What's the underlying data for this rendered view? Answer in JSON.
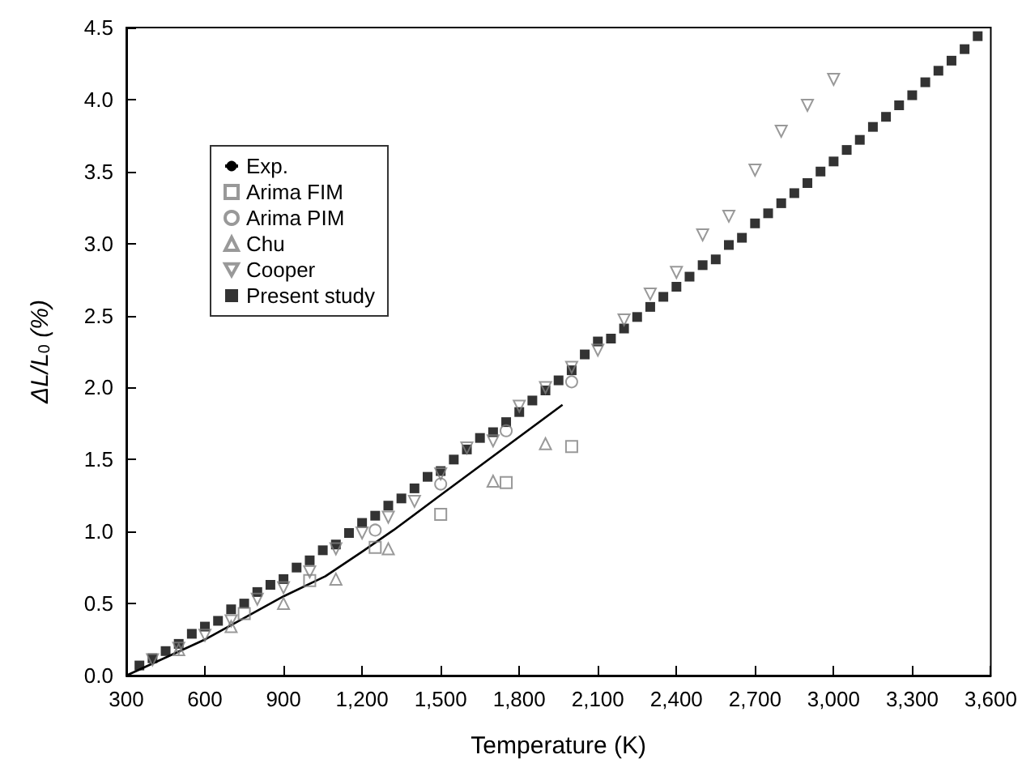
{
  "chart_data": {
    "type": "scatter",
    "xlabel": "Temperature (K)",
    "ylabel": "ΔL/L$_{0}$ (%)",
    "xlim": [
      300,
      3600
    ],
    "xticks": [
      {
        "value": 300,
        "label": "300"
      },
      {
        "value": 600,
        "label": "600"
      },
      {
        "value": 900,
        "label": "900"
      },
      {
        "value": 1200,
        "label": "1,200"
      },
      {
        "value": 1500,
        "label": "1,500"
      },
      {
        "value": 1800,
        "label": "1,800"
      },
      {
        "value": 2100,
        "label": "2,100"
      },
      {
        "value": 2400,
        "label": "2,400"
      },
      {
        "value": 2700,
        "label": "2,700"
      },
      {
        "value": 3000,
        "label": "3,000"
      },
      {
        "value": 3300,
        "label": "3,300"
      },
      {
        "value": 3600,
        "label": "3,600"
      }
    ],
    "ylim": [
      0,
      4.5
    ],
    "yticks": [
      {
        "value": 0,
        "label": "0.0"
      },
      {
        "value": 0.5,
        "label": "0.5"
      },
      {
        "value": 1,
        "label": "1.0"
      },
      {
        "value": 1.5,
        "label": "1.5"
      },
      {
        "value": 2,
        "label": "2.0"
      },
      {
        "value": 2.5,
        "label": "2.5"
      },
      {
        "value": 3,
        "label": "3.0"
      },
      {
        "value": 3.5,
        "label": "3.5"
      },
      {
        "value": 4,
        "label": "4.0"
      },
      {
        "value": 4.5,
        "label": "4.5"
      }
    ],
    "legend": "top left",
    "grid": false,
    "series": [
      {
        "name": "Exp.",
        "type": "line",
        "marker": "none",
        "line_style": "solid",
        "color": "#000000",
        "x": [
          300,
          600,
          900,
          1060,
          1200,
          1320,
          1490,
          1965
        ],
        "values": [
          0.0,
          0.25,
          0.55,
          0.69,
          0.86,
          1.01,
          1.24,
          1.88
        ]
      },
      {
        "name": "Arima FIM",
        "marker": "square",
        "color": "#808080",
        "x": [
          750,
          1000,
          1250,
          1500,
          1750,
          2000
        ],
        "values": [
          0.43,
          0.66,
          0.89,
          1.12,
          1.34,
          1.59
        ]
      },
      {
        "name": "Arima PIM",
        "marker": "circle",
        "color": "#808080",
        "x": [
          1250,
          1500,
          1750,
          2000
        ],
        "values": [
          1.01,
          1.33,
          1.7,
          2.04
        ]
      },
      {
        "name": "Chu",
        "marker": "triangle",
        "color": "#808080",
        "x": [
          500,
          700,
          900,
          1100,
          1300,
          1700,
          1900
        ],
        "values": [
          0.18,
          0.34,
          0.5,
          0.67,
          0.88,
          1.35,
          1.61
        ]
      },
      {
        "name": "Cooper",
        "marker": "triangle_down",
        "color": "#808080",
        "x": [
          400,
          500,
          600,
          700,
          800,
          900,
          1000,
          1100,
          1200,
          1300,
          1400,
          1500,
          1600,
          1700,
          1800,
          1900,
          2000,
          2100,
          2200,
          2300,
          2400,
          2500,
          2600,
          2700,
          2800,
          2900,
          3000
        ],
        "values": [
          0.11,
          0.19,
          0.28,
          0.38,
          0.53,
          0.61,
          0.72,
          0.88,
          0.99,
          1.1,
          1.21,
          1.4,
          1.58,
          1.63,
          1.87,
          2.0,
          2.14,
          2.26,
          2.47,
          2.65,
          2.8,
          3.06,
          3.19,
          3.51,
          3.78,
          3.96,
          4.14
        ]
      },
      {
        "name": "Present study",
        "marker": "square",
        "color": "#000000",
        "x": [
          350,
          400,
          450,
          500,
          550,
          600,
          650,
          700,
          750,
          800,
          850,
          900,
          950,
          1000,
          1050,
          1100,
          1150,
          1200,
          1250,
          1300,
          1350,
          1400,
          1450,
          1500,
          1550,
          1600,
          1650,
          1700,
          1750,
          1800,
          1850,
          1900,
          1950,
          2000,
          2050,
          2100,
          2150,
          2200,
          2250,
          2300,
          2350,
          2400,
          2450,
          2500,
          2550,
          2600,
          2650,
          2700,
          2750,
          2800,
          2850,
          2900,
          2950,
          3000,
          3050,
          3100,
          3150,
          3200,
          3250,
          3300,
          3350,
          3400,
          3450,
          3500,
          3550
        ],
        "values": [
          0.07,
          0.12,
          0.17,
          0.22,
          0.29,
          0.34,
          0.38,
          0.46,
          0.5,
          0.58,
          0.63,
          0.67,
          0.75,
          0.8,
          0.87,
          0.91,
          0.99,
          1.06,
          1.11,
          1.18,
          1.23,
          1.3,
          1.38,
          1.42,
          1.5,
          1.57,
          1.65,
          1.69,
          1.76,
          1.83,
          1.91,
          1.98,
          2.05,
          2.12,
          2.23,
          2.32,
          2.34,
          2.41,
          2.49,
          2.56,
          2.63,
          2.7,
          2.77,
          2.85,
          2.89,
          2.99,
          3.04,
          3.14,
          3.21,
          3.28,
          3.35,
          3.42,
          3.5,
          3.57,
          3.65,
          3.72,
          3.81,
          3.88,
          3.96,
          4.03,
          4.12,
          4.2,
          4.27,
          4.35,
          4.44
        ]
      }
    ]
  }
}
